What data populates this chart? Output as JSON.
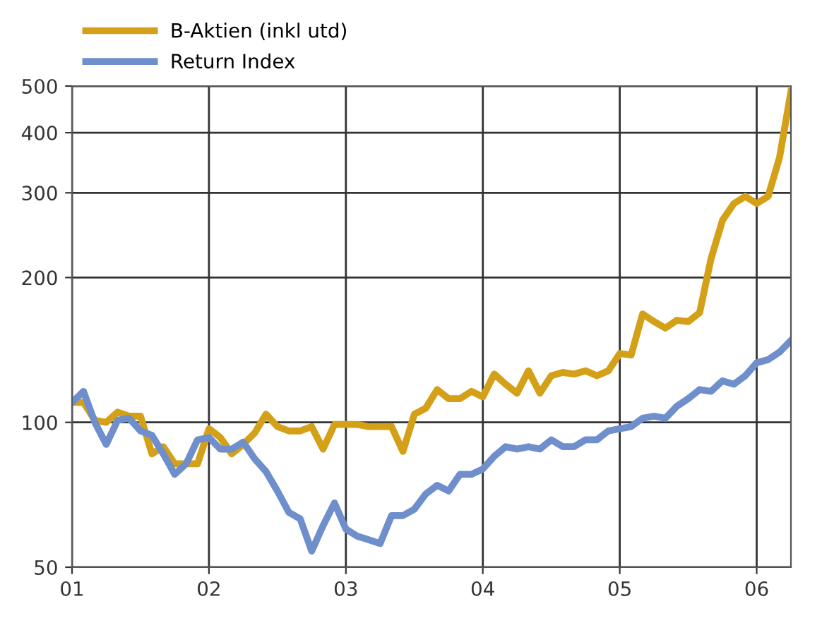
{
  "chart_data": {
    "type": "line",
    "x": [
      "2001-01",
      "2001-02",
      "2001-03",
      "2001-04",
      "2001-05",
      "2001-06",
      "2001-07",
      "2001-08",
      "2001-09",
      "2001-10",
      "2001-11",
      "2001-12",
      "2002-01",
      "2002-02",
      "2002-03",
      "2002-04",
      "2002-05",
      "2002-06",
      "2002-07",
      "2002-08",
      "2002-09",
      "2002-10",
      "2002-11",
      "2002-12",
      "2003-01",
      "2003-02",
      "2003-03",
      "2003-04",
      "2003-05",
      "2003-06",
      "2003-07",
      "2003-08",
      "2003-09",
      "2003-10",
      "2003-11",
      "2003-12",
      "2004-01",
      "2004-02",
      "2004-03",
      "2004-04",
      "2004-05",
      "2004-06",
      "2004-07",
      "2004-08",
      "2004-09",
      "2004-10",
      "2004-11",
      "2004-12",
      "2005-01",
      "2005-02",
      "2005-03",
      "2005-04",
      "2005-05",
      "2005-06",
      "2005-07",
      "2005-08",
      "2005-09",
      "2005-10",
      "2005-11",
      "2005-12",
      "2006-01",
      "2006-02",
      "2006-03",
      "2006-04"
    ],
    "series": [
      {
        "name": "B-Aktien (inkl utd)",
        "color": "#d4a017",
        "values": [
          110,
          110,
          101,
          100,
          105,
          103,
          103,
          86,
          89,
          82,
          82,
          82,
          97,
          93,
          86,
          90,
          95,
          104,
          98,
          96,
          96,
          98,
          88,
          99,
          99,
          99,
          98,
          98,
          98,
          87,
          104,
          107,
          117,
          112,
          112,
          116,
          113,
          126,
          120,
          115,
          128,
          115,
          125,
          127,
          126,
          128,
          125,
          128,
          139,
          138,
          168,
          162,
          157,
          163,
          162,
          169,
          219,
          263,
          285,
          295,
          285,
          295,
          355,
          487
        ]
      },
      {
        "name": "Return Index",
        "color": "#6f8fcc",
        "values": [
          110,
          116,
          100,
          90,
          101,
          102,
          96,
          94,
          86,
          78,
          82,
          92,
          93,
          88,
          88,
          91,
          84,
          79,
          72,
          65,
          63,
          54,
          61,
          68,
          60,
          58,
          57,
          56,
          64,
          64,
          66,
          71,
          74,
          72,
          78,
          78,
          80,
          85,
          89,
          88,
          89,
          88,
          92,
          89,
          89,
          92,
          92,
          96,
          97,
          98,
          102,
          103,
          102,
          108,
          112,
          117,
          116,
          122,
          120,
          125,
          133,
          135,
          140,
          148
        ]
      }
    ],
    "log": "y",
    "ylim": [
      50,
      500
    ],
    "yticks": [
      50,
      100,
      200,
      300,
      400,
      500
    ],
    "xlim": [
      "2001-01",
      "2006-04"
    ],
    "xticks": [
      {
        "value": "2001-01",
        "label": "01"
      },
      {
        "value": "2002-01",
        "label": "02"
      },
      {
        "value": "2003-01",
        "label": "03"
      },
      {
        "value": "2004-01",
        "label": "04"
      },
      {
        "value": "2005-01",
        "label": "05"
      },
      {
        "value": "2006-01",
        "label": "06"
      }
    ],
    "grid": true,
    "legend": "top left",
    "line_style": "solid",
    "marker": "none"
  }
}
